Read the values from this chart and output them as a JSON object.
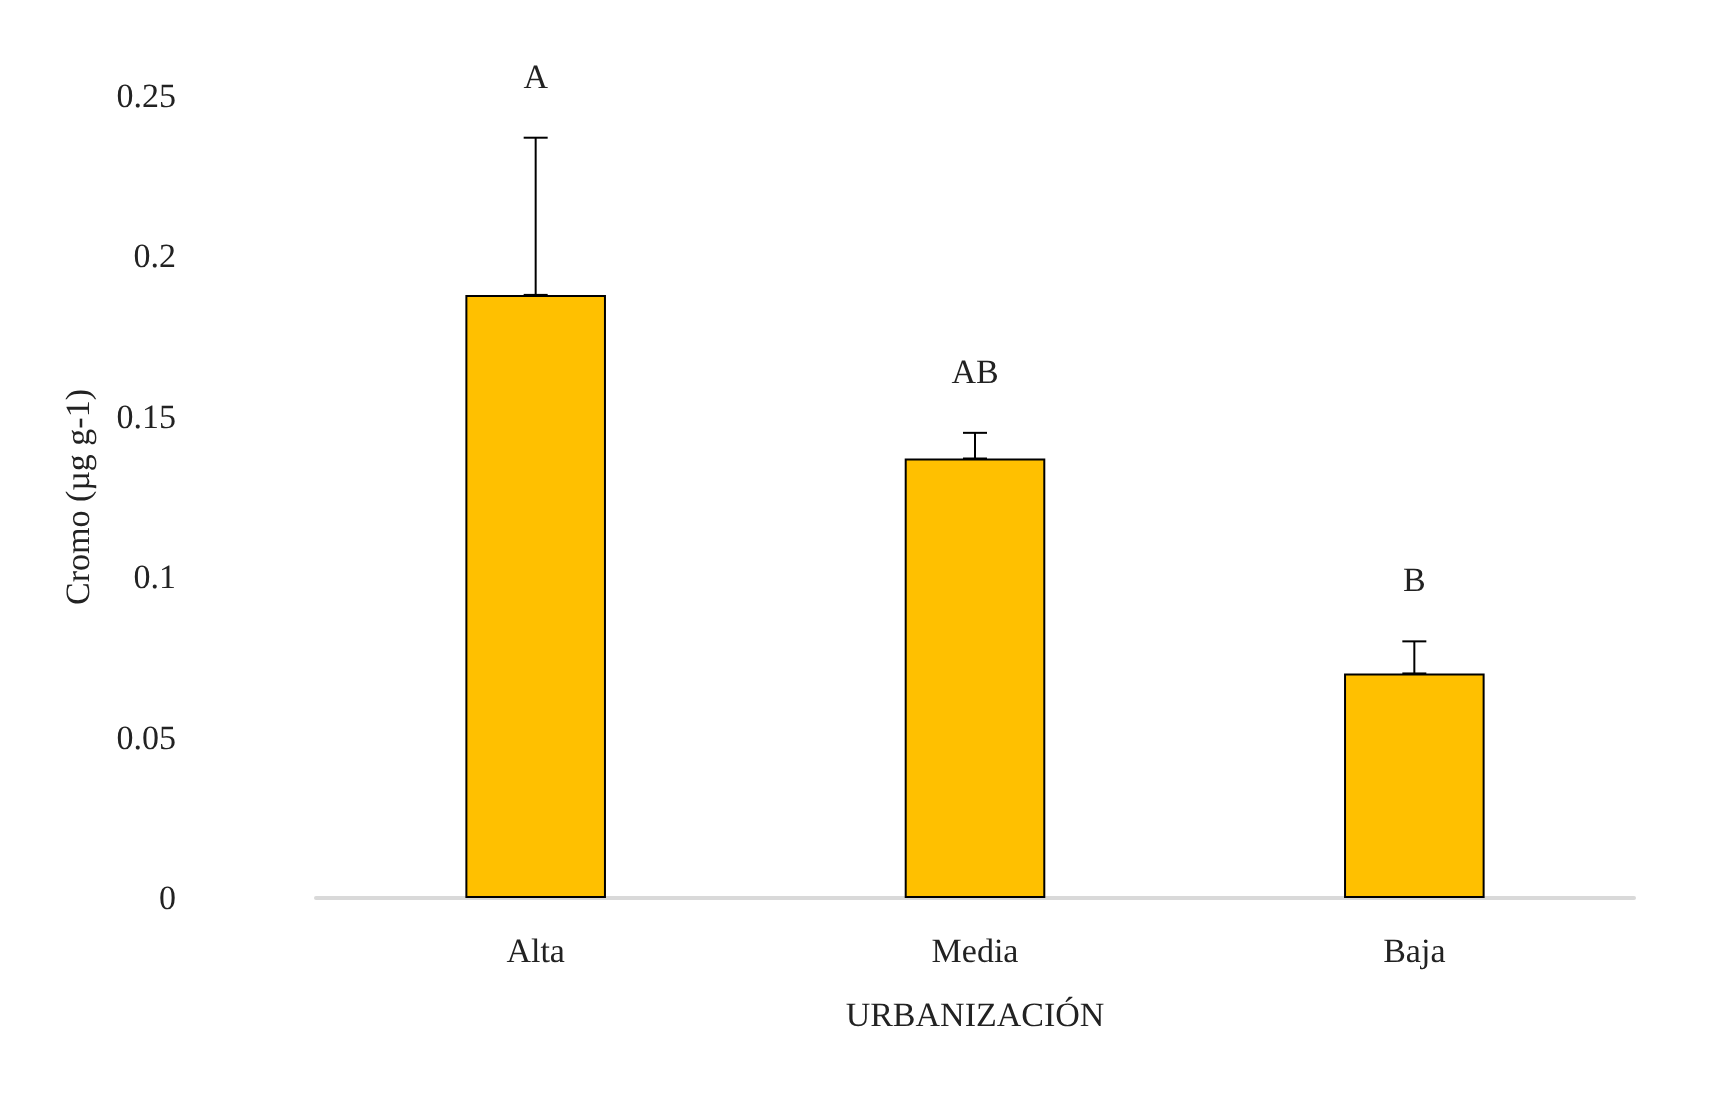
{
  "chart_data": {
    "type": "bar",
    "xlabel": "URBANIZACIÓN",
    "ylabel": "Cromo (µg g-1)",
    "categories": [
      "Alta",
      "Media",
      "Baja"
    ],
    "values": [
      0.188,
      0.137,
      0.07
    ],
    "color": "#ffc000",
    "errors": [
      [
        0.188,
        0.237
      ],
      [
        0.137,
        0.145
      ],
      [
        0.07,
        0.08
      ]
    ],
    "ylim": [
      0,
      0.25
    ],
    "yticks": [
      0,
      0.05,
      0.1,
      0.15,
      0.2,
      0.25
    ],
    "annotations": [
      "A",
      "AB",
      "B"
    ],
    "grid": false
  }
}
